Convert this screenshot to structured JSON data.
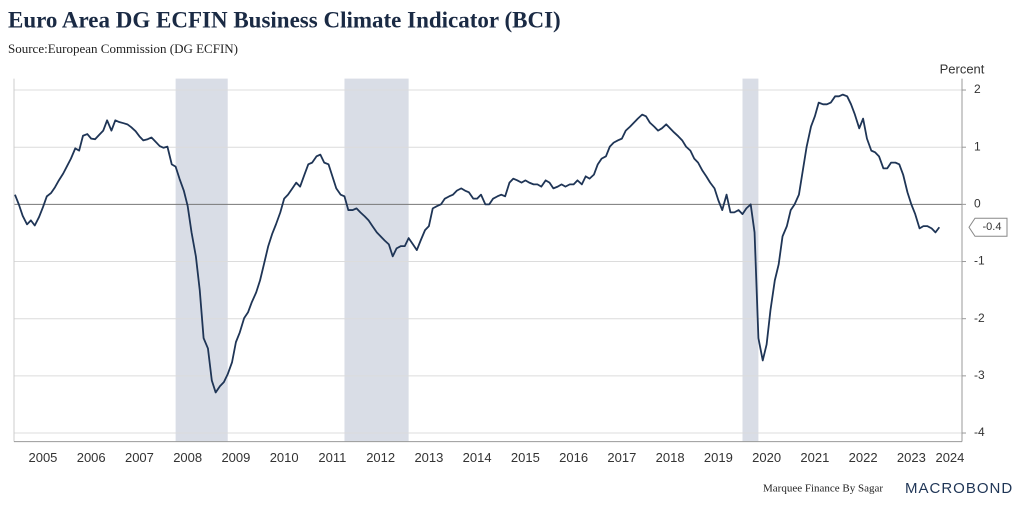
{
  "chart_data": {
    "type": "line",
    "title": "Euro Area DG ECFIN Business Climate Indicator (BCI)",
    "subtitle": "Source:European Commission (DG ECFIN)",
    "ylabel": "Percent",
    "footer": "Marquee Finance By Sagar",
    "brand": "MACROBOND",
    "color": "#1f3556",
    "shade_color": "#d9dde6",
    "shaded_periods": [
      [
        2008.25,
        2009.33
      ],
      [
        2011.75,
        2013.08
      ],
      [
        2020.0,
        2020.33
      ]
    ],
    "grid": true,
    "xlim": [
      2004.9,
      2024.55
    ],
    "ylim": [
      -4.15,
      2.2
    ],
    "yticks": [
      2,
      1,
      0,
      -1,
      -2,
      -3,
      -4
    ],
    "xticks": [
      {
        "value": 2005.5,
        "label": "2005"
      },
      {
        "value": 2006.5,
        "label": "2006"
      },
      {
        "value": 2007.5,
        "label": "2007"
      },
      {
        "value": 2008.5,
        "label": "2008"
      },
      {
        "value": 2009.5,
        "label": "2009"
      },
      {
        "value": 2010.5,
        "label": "2010"
      },
      {
        "value": 2011.5,
        "label": "2011"
      },
      {
        "value": 2012.5,
        "label": "2012"
      },
      {
        "value": 2013.5,
        "label": "2013"
      },
      {
        "value": 2014.5,
        "label": "2014"
      },
      {
        "value": 2015.5,
        "label": "2015"
      },
      {
        "value": 2016.5,
        "label": "2016"
      },
      {
        "value": 2017.5,
        "label": "2017"
      },
      {
        "value": 2018.5,
        "label": "2018"
      },
      {
        "value": 2019.5,
        "label": "2019"
      },
      {
        "value": 2020.5,
        "label": "2020"
      },
      {
        "value": 2021.5,
        "label": "2021"
      },
      {
        "value": 2022.5,
        "label": "2022"
      },
      {
        "value": 2023.5,
        "label": "2023"
      },
      {
        "value": 2024.3,
        "label": "2024"
      }
    ],
    "x": [
      2004.92,
      2005,
      2005.08,
      2005.17,
      2005.25,
      2005.33,
      2005.42,
      2005.5,
      2005.58,
      2005.67,
      2005.75,
      2005.83,
      2005.92,
      2006,
      2006.08,
      2006.17,
      2006.25,
      2006.33,
      2006.42,
      2006.5,
      2006.58,
      2006.67,
      2006.75,
      2006.83,
      2006.92,
      2007,
      2007.08,
      2007.17,
      2007.25,
      2007.33,
      2007.42,
      2007.5,
      2007.58,
      2007.67,
      2007.75,
      2007.83,
      2007.92,
      2008,
      2008.08,
      2008.17,
      2008.25,
      2008.33,
      2008.42,
      2008.5,
      2008.58,
      2008.67,
      2008.75,
      2008.83,
      2008.92,
      2009,
      2009.08,
      2009.17,
      2009.25,
      2009.33,
      2009.42,
      2009.5,
      2009.58,
      2009.67,
      2009.75,
      2009.83,
      2009.92,
      2010,
      2010.08,
      2010.17,
      2010.25,
      2010.33,
      2010.42,
      2010.5,
      2010.58,
      2010.67,
      2010.75,
      2010.83,
      2010.92,
      2011,
      2011.08,
      2011.17,
      2011.25,
      2011.33,
      2011.42,
      2011.5,
      2011.58,
      2011.67,
      2011.75,
      2011.83,
      2011.92,
      2012,
      2012.08,
      2012.17,
      2012.25,
      2012.33,
      2012.42,
      2012.5,
      2012.58,
      2012.67,
      2012.75,
      2012.83,
      2012.92,
      2013,
      2013.08,
      2013.17,
      2013.25,
      2013.33,
      2013.42,
      2013.5,
      2013.58,
      2013.67,
      2013.75,
      2013.83,
      2013.92,
      2014,
      2014.08,
      2014.17,
      2014.25,
      2014.33,
      2014.42,
      2014.5,
      2014.58,
      2014.67,
      2014.75,
      2014.83,
      2014.92,
      2015,
      2015.08,
      2015.17,
      2015.25,
      2015.33,
      2015.42,
      2015.5,
      2015.58,
      2015.67,
      2015.75,
      2015.83,
      2015.92,
      2016,
      2016.08,
      2016.17,
      2016.25,
      2016.33,
      2016.42,
      2016.5,
      2016.58,
      2016.67,
      2016.75,
      2016.83,
      2016.92,
      2017,
      2017.08,
      2017.17,
      2017.25,
      2017.33,
      2017.42,
      2017.5,
      2017.58,
      2017.67,
      2017.75,
      2017.83,
      2017.92,
      2018,
      2018.08,
      2018.17,
      2018.25,
      2018.33,
      2018.42,
      2018.5,
      2018.58,
      2018.67,
      2018.75,
      2018.83,
      2018.92,
      2019,
      2019.08,
      2019.17,
      2019.25,
      2019.33,
      2019.42,
      2019.5,
      2019.58,
      2019.67,
      2019.75,
      2019.83,
      2019.92,
      2020,
      2020.08,
      2020.17,
      2020.25,
      2020.33,
      2020.42,
      2020.5,
      2020.58,
      2020.67,
      2020.75,
      2020.83,
      2020.92,
      2021,
      2021.08,
      2021.17,
      2021.25,
      2021.33,
      2021.42,
      2021.5,
      2021.58,
      2021.67,
      2021.75,
      2021.83,
      2021.92,
      2022,
      2022.08,
      2022.17,
      2022.25,
      2022.33,
      2022.42,
      2022.5,
      2022.58,
      2022.67,
      2022.75,
      2022.83,
      2022.92,
      2023,
      2023.08,
      2023.17,
      2023.25,
      2023.33,
      2023.42,
      2023.5,
      2023.58,
      2023.67,
      2023.75,
      2023.83,
      2023.92,
      2024,
      2024.08
    ],
    "values": [
      0.17,
      0,
      -0.2,
      -0.35,
      -0.28,
      -0.37,
      -0.22,
      -0.05,
      0.14,
      0.2,
      0.3,
      0.42,
      0.54,
      0.67,
      0.8,
      0.98,
      0.94,
      1.2,
      1.23,
      1.15,
      1.14,
      1.22,
      1.29,
      1.47,
      1.29,
      1.47,
      1.44,
      1.42,
      1.4,
      1.35,
      1.28,
      1.19,
      1.12,
      1.14,
      1.17,
      1.1,
      1.02,
      0.99,
      1.01,
      0.7,
      0.66,
      0.45,
      0.24,
      -0.03,
      -0.49,
      -0.91,
      -1.5,
      -2.34,
      -2.52,
      -3.08,
      -3.29,
      -3.18,
      -3.11,
      -2.97,
      -2.76,
      -2.41,
      -2.24,
      -1.99,
      -1.89,
      -1.71,
      -1.54,
      -1.33,
      -1.05,
      -0.73,
      -0.52,
      -0.35,
      -0.14,
      0.1,
      0.17,
      0.28,
      0.38,
      0.31,
      0.52,
      0.7,
      0.73,
      0.84,
      0.87,
      0.73,
      0.7,
      0.49,
      0.28,
      0.17,
      0.14,
      -0.1,
      -0.1,
      -0.07,
      -0.14,
      -0.21,
      -0.28,
      -0.38,
      -0.49,
      -0.56,
      -0.63,
      -0.7,
      -0.91,
      -0.77,
      -0.73,
      -0.73,
      -0.59,
      -0.7,
      -0.8,
      -0.63,
      -0.45,
      -0.38,
      -0.07,
      -0.03,
      0,
      0.1,
      0.14,
      0.17,
      0.24,
      0.28,
      0.24,
      0.21,
      0.1,
      0.1,
      0.17,
      0,
      0,
      0.1,
      0.14,
      0.17,
      0.14,
      0.38,
      0.45,
      0.42,
      0.38,
      0.42,
      0.38,
      0.35,
      0.35,
      0.31,
      0.42,
      0.38,
      0.28,
      0.31,
      0.35,
      0.31,
      0.35,
      0.35,
      0.42,
      0.35,
      0.49,
      0.45,
      0.52,
      0.7,
      0.8,
      0.84,
      1.01,
      1.08,
      1.12,
      1.15,
      1.29,
      1.36,
      1.43,
      1.5,
      1.57,
      1.54,
      1.43,
      1.36,
      1.29,
      1.33,
      1.4,
      1.33,
      1.26,
      1.19,
      1.12,
      1.01,
      0.94,
      0.8,
      0.73,
      0.59,
      0.49,
      0.38,
      0.28,
      0.07,
      -0.1,
      0.17,
      -0.14,
      -0.14,
      -0.1,
      -0.17,
      -0.07,
      0,
      -0.49,
      -2.34,
      -2.73,
      -2.45,
      -1.85,
      -1.33,
      -1.05,
      -0.56,
      -0.38,
      -0.1,
      0,
      0.17,
      0.59,
      1.01,
      1.36,
      1.54,
      1.78,
      1.75,
      1.75,
      1.78,
      1.89,
      1.89,
      1.92,
      1.89,
      1.75,
      1.57,
      1.33,
      1.5,
      1.15,
      0.94,
      0.91,
      0.84,
      0.63,
      0.63,
      0.73,
      0.73,
      0.7,
      0.52,
      0.21,
      0,
      -0.17,
      -0.42,
      -0.38,
      -0.38,
      -0.42,
      -0.49,
      -0.4
    ]
  }
}
